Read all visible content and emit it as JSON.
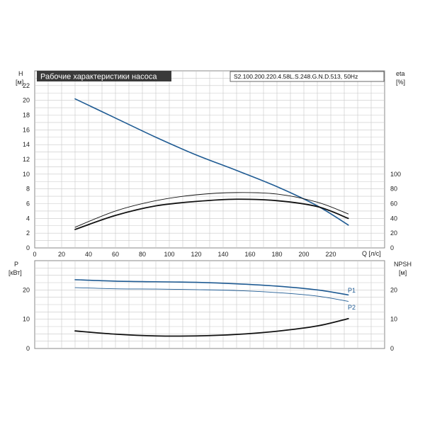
{
  "title": "Рабочие характеристики насоса",
  "model": "S2.100.200.220.4.58L.S.248.G.N.D.513, 50Hz",
  "colors": {
    "blue": "#1f5b93",
    "black": "#111111",
    "grid": "#c8c8c8",
    "title_bg": "#3a3a3a"
  },
  "chart_data": [
    {
      "type": "line",
      "name": "head-efficiency",
      "x_label": "Q [л/с]",
      "y_left_label": [
        "H",
        "[м]"
      ],
      "y_right_label": [
        "eta",
        "[%]"
      ],
      "xlim": [
        0,
        260
      ],
      "ylim_left": [
        0,
        24
      ],
      "ylim_right": [
        0,
        240
      ],
      "x_ticks": [
        0,
        20,
        40,
        60,
        80,
        100,
        120,
        140,
        160,
        180,
        200,
        220
      ],
      "y_left_ticks": [
        0,
        2,
        4,
        6,
        8,
        10,
        12,
        14,
        16,
        18,
        20,
        22
      ],
      "y_right_ticks": [
        0,
        20,
        40,
        60,
        80,
        100
      ],
      "series": [
        {
          "axis": "left",
          "color": "#1f5b93",
          "width": 1.6,
          "x": [
            30,
            60,
            90,
            120,
            150,
            180,
            210,
            233
          ],
          "y": [
            20.2,
            17.6,
            15.0,
            12.6,
            10.5,
            8.3,
            5.7,
            3.1
          ]
        },
        {
          "axis": "right",
          "color": "#111111",
          "width": 0.9,
          "x": [
            30,
            60,
            90,
            120,
            150,
            180,
            210,
            233
          ],
          "y": [
            28,
            50,
            64,
            72,
            75,
            73,
            62,
            46
          ]
        },
        {
          "axis": "right",
          "color": "#111111",
          "width": 1.8,
          "x": [
            30,
            60,
            90,
            120,
            150,
            180,
            210,
            233
          ],
          "y": [
            25,
            44,
            57,
            63,
            66,
            64,
            56,
            40
          ]
        }
      ]
    },
    {
      "type": "line",
      "name": "power-npsh",
      "y_left_label": [
        "P",
        "[кВт]"
      ],
      "y_right_label": [
        "NPSH",
        "[м]"
      ],
      "xlim": [
        0,
        260
      ],
      "ylim_left": [
        0,
        30
      ],
      "ylim_right": [
        0,
        30
      ],
      "y_left_ticks": [
        0,
        10,
        20
      ],
      "y_right_ticks": [
        0,
        10,
        20
      ],
      "series": [
        {
          "name": "P1",
          "axis": "left",
          "color": "#1f5b93",
          "width": 1.6,
          "x": [
            30,
            60,
            90,
            120,
            150,
            180,
            210,
            233
          ],
          "y": [
            23.5,
            23.0,
            22.8,
            22.6,
            22.1,
            21.3,
            20.0,
            18.3
          ]
        },
        {
          "name": "P2",
          "axis": "left",
          "color": "#1f5b93",
          "width": 0.9,
          "x": [
            30,
            60,
            90,
            120,
            150,
            180,
            210,
            233
          ],
          "y": [
            20.8,
            20.4,
            20.3,
            20.1,
            19.8,
            19.1,
            17.9,
            16.1
          ]
        },
        {
          "axis": "right",
          "color": "#111111",
          "width": 1.8,
          "x": [
            30,
            60,
            90,
            120,
            150,
            180,
            210,
            233
          ],
          "y": [
            6.0,
            4.9,
            4.3,
            4.3,
            4.8,
            5.9,
            7.7,
            10.2
          ]
        }
      ]
    }
  ]
}
